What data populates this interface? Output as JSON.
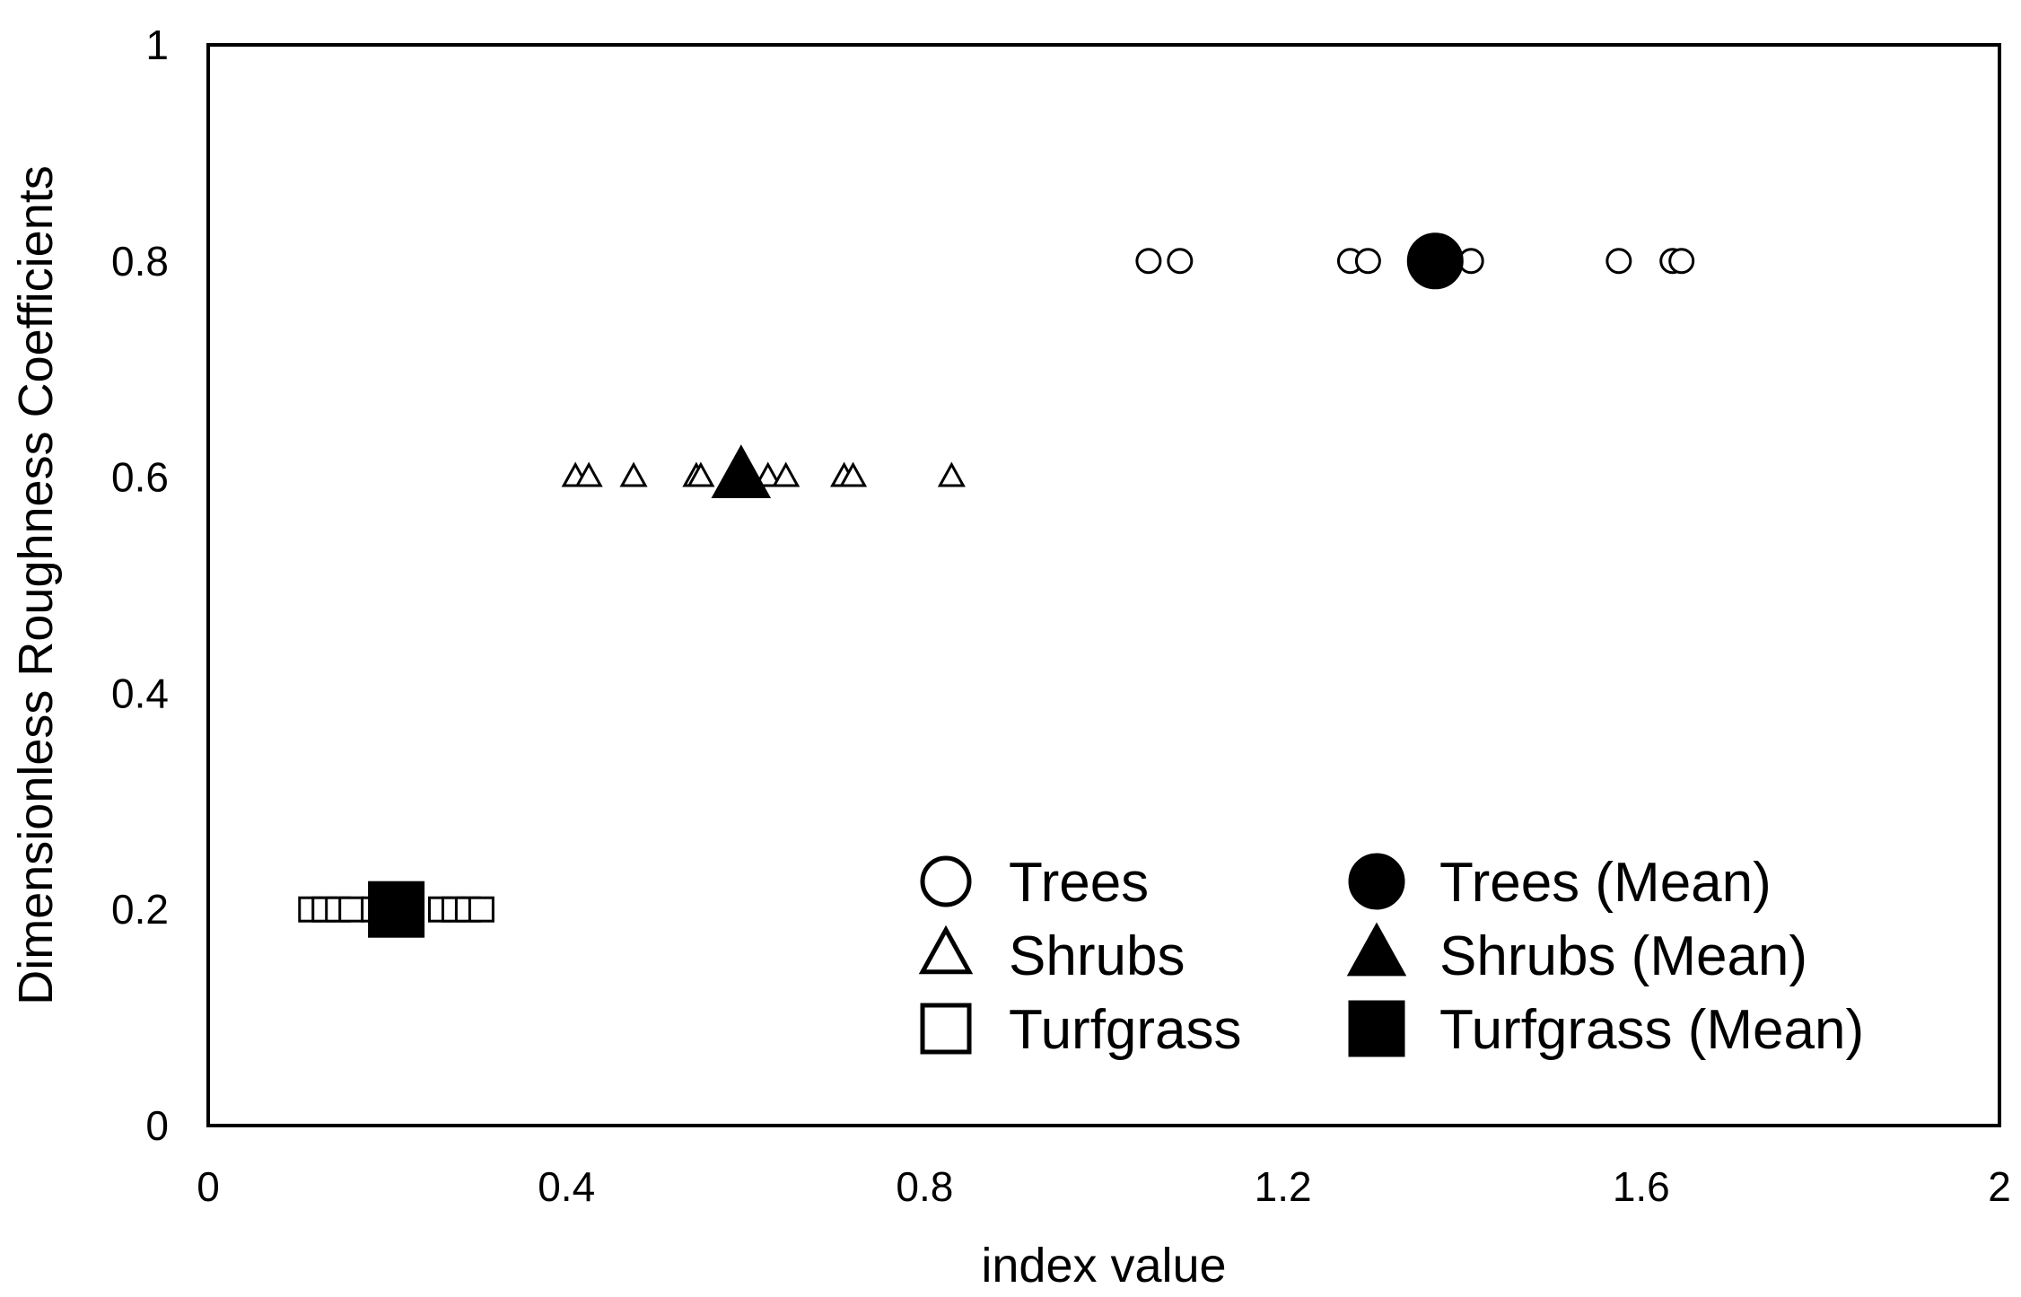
{
  "chart_data": {
    "type": "scatter",
    "xlabel": "index value",
    "ylabel": "Dimensionless Roughness Coefficients",
    "xlim": [
      0,
      2
    ],
    "ylim": [
      0,
      1
    ],
    "x_ticks": [
      "0",
      "0.4",
      "0.8",
      "1.2",
      "1.6",
      "2"
    ],
    "y_ticks": [
      "0",
      "0.2",
      "0.4",
      "0.6",
      "0.8",
      "1"
    ],
    "grid": false,
    "legend_position": "bottom-right",
    "series": [
      {
        "name": "Trees",
        "marker": "circle-open",
        "x": [
          1.05,
          1.085,
          1.275,
          1.295,
          1.355,
          1.365,
          1.41,
          1.575,
          1.635,
          1.645
        ],
        "y": [
          0.8,
          0.8,
          0.8,
          0.8,
          0.8,
          0.8,
          0.8,
          0.8,
          0.8,
          0.8
        ]
      },
      {
        "name": "Trees (Mean)",
        "marker": "circle-filled",
        "x": [
          1.37
        ],
        "y": [
          0.8
        ]
      },
      {
        "name": "Shrubs",
        "marker": "triangle-open",
        "x": [
          0.41,
          0.425,
          0.475,
          0.545,
          0.55,
          0.625,
          0.645,
          0.71,
          0.72,
          0.83
        ],
        "y": [
          0.6,
          0.6,
          0.6,
          0.6,
          0.6,
          0.6,
          0.6,
          0.6,
          0.6,
          0.6
        ]
      },
      {
        "name": "Shrubs (Mean)",
        "marker": "triangle-filled",
        "x": [
          0.595
        ],
        "y": [
          0.6
        ]
      },
      {
        "name": "Turfgrass",
        "marker": "square-open",
        "x": [
          0.115,
          0.13,
          0.145,
          0.16,
          0.185,
          0.205,
          0.26,
          0.275,
          0.29,
          0.305
        ],
        "y": [
          0.2,
          0.2,
          0.2,
          0.2,
          0.2,
          0.2,
          0.2,
          0.2,
          0.2,
          0.2
        ]
      },
      {
        "name": "Turfgrass (Mean)",
        "marker": "square-filled",
        "x": [
          0.21
        ],
        "y": [
          0.2
        ]
      }
    ]
  }
}
